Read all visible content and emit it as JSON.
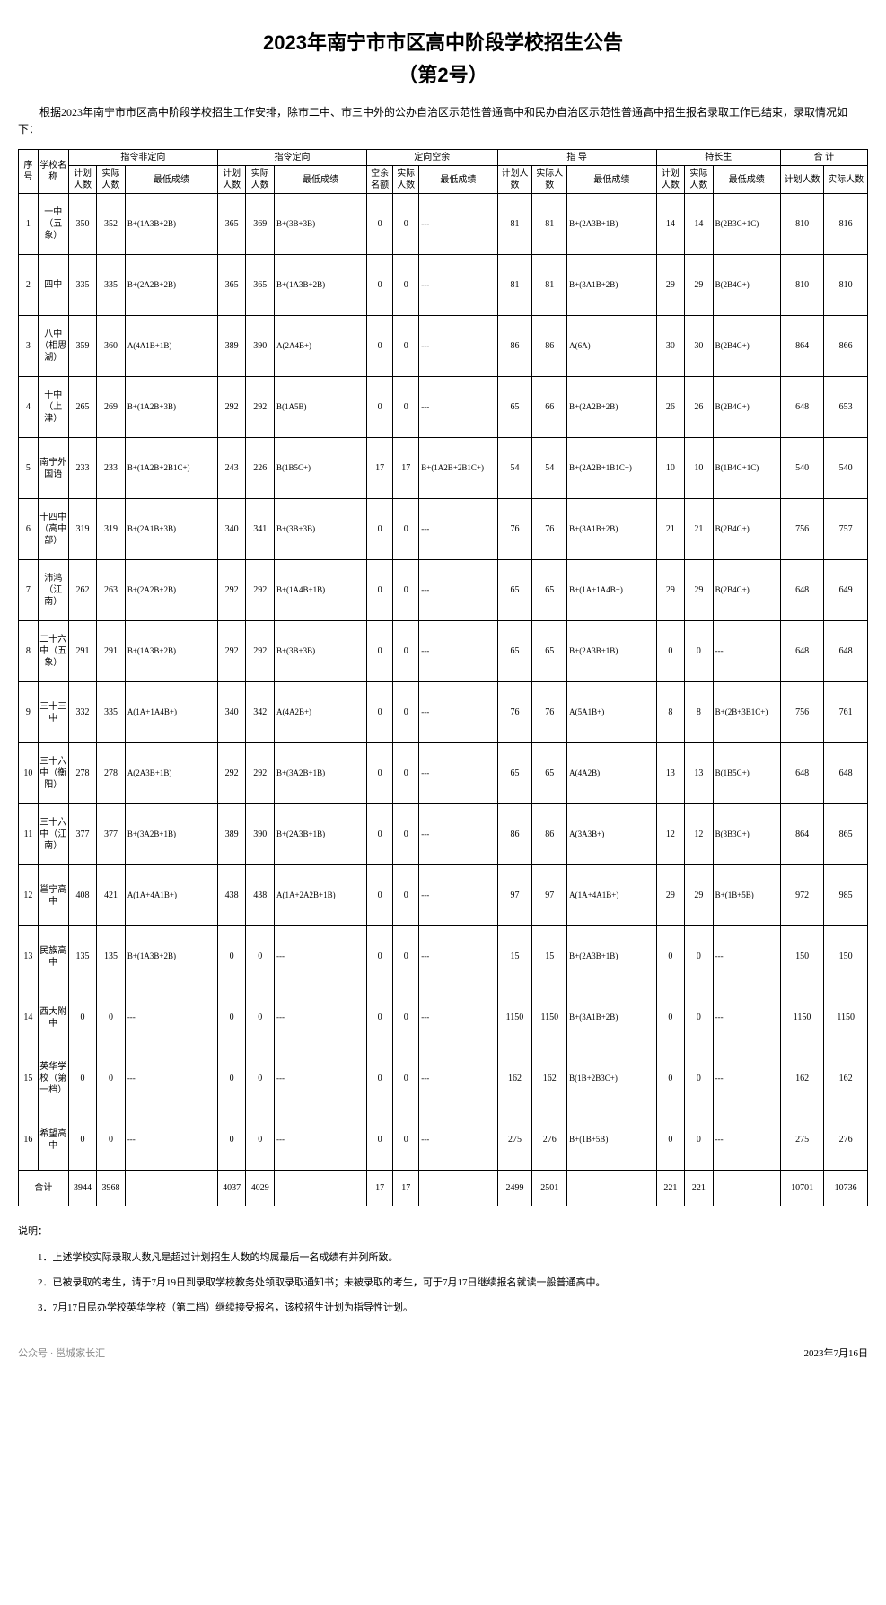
{
  "title_line1": "2023年南宁市市区高中阶段学校招生公告",
  "title_line2": "（第2号）",
  "intro": "根据2023年南宁市市区高中阶段学校招生工作安排，除市二中、市三中外的公办自治区示范性普通高中和民办自治区示范性普通高中招生报名录取工作已结束，录取情况如下：",
  "header": {
    "seq": "序号",
    "school": "学校名称",
    "group1": "指令非定向",
    "group2": "指令定向",
    "group3": "定向空余",
    "group4": "指 导",
    "group5": "特长生",
    "group6": "合 计",
    "plan": "计划人数",
    "actual": "实际人数",
    "score": "最低成绩",
    "vacant_quota": "空余名额"
  },
  "rows": [
    {
      "seq": "1",
      "school": "一中（五象）",
      "p1": "350",
      "a1": "352",
      "s1": "B+(1A3B+2B)",
      "p2": "365",
      "a2": "369",
      "s2": "B+(3B+3B)",
      "p3": "0",
      "a3": "0",
      "s3": "---",
      "p4": "81",
      "a4": "81",
      "s4": "B+(2A3B+1B)",
      "p5": "14",
      "a5": "14",
      "s5": "B(2B3C+1C)",
      "tp": "810",
      "ta": "816"
    },
    {
      "seq": "2",
      "school": "四中",
      "p1": "335",
      "a1": "335",
      "s1": "B+(2A2B+2B)",
      "p2": "365",
      "a2": "365",
      "s2": "B+(1A3B+2B)",
      "p3": "0",
      "a3": "0",
      "s3": "---",
      "p4": "81",
      "a4": "81",
      "s4": "B+(3A1B+2B)",
      "p5": "29",
      "a5": "29",
      "s5": "B(2B4C+)",
      "tp": "810",
      "ta": "810"
    },
    {
      "seq": "3",
      "school": "八中（相思湖）",
      "p1": "359",
      "a1": "360",
      "s1": "A(4A1B+1B)",
      "p2": "389",
      "a2": "390",
      "s2": "A(2A4B+)",
      "p3": "0",
      "a3": "0",
      "s3": "---",
      "p4": "86",
      "a4": "86",
      "s4": "A(6A)",
      "p5": "30",
      "a5": "30",
      "s5": "B(2B4C+)",
      "tp": "864",
      "ta": "866"
    },
    {
      "seq": "4",
      "school": "十中（上津）",
      "p1": "265",
      "a1": "269",
      "s1": "B+(1A2B+3B)",
      "p2": "292",
      "a2": "292",
      "s2": "B(1A5B)",
      "p3": "0",
      "a3": "0",
      "s3": "---",
      "p4": "65",
      "a4": "66",
      "s4": "B+(2A2B+2B)",
      "p5": "26",
      "a5": "26",
      "s5": "B(2B4C+)",
      "tp": "648",
      "ta": "653"
    },
    {
      "seq": "5",
      "school": "南宁外国语",
      "p1": "233",
      "a1": "233",
      "s1": "B+(1A2B+2B1C+)",
      "p2": "243",
      "a2": "226",
      "s2": "B(1B5C+)",
      "p3": "17",
      "a3": "17",
      "s3": "B+(1A2B+2B1C+)",
      "p4": "54",
      "a4": "54",
      "s4": "B+(2A2B+1B1C+)",
      "p5": "10",
      "a5": "10",
      "s5": "B(1B4C+1C)",
      "tp": "540",
      "ta": "540"
    },
    {
      "seq": "6",
      "school": "十四中（高中部）",
      "p1": "319",
      "a1": "319",
      "s1": "B+(2A1B+3B)",
      "p2": "340",
      "a2": "341",
      "s2": "B+(3B+3B)",
      "p3": "0",
      "a3": "0",
      "s3": "---",
      "p4": "76",
      "a4": "76",
      "s4": "B+(3A1B+2B)",
      "p5": "21",
      "a5": "21",
      "s5": "B(2B4C+)",
      "tp": "756",
      "ta": "757"
    },
    {
      "seq": "7",
      "school": "沛鸿（江南）",
      "p1": "262",
      "a1": "263",
      "s1": "B+(2A2B+2B)",
      "p2": "292",
      "a2": "292",
      "s2": "B+(1A4B+1B)",
      "p3": "0",
      "a3": "0",
      "s3": "---",
      "p4": "65",
      "a4": "65",
      "s4": "B+(1A+1A4B+)",
      "p5": "29",
      "a5": "29",
      "s5": "B(2B4C+)",
      "tp": "648",
      "ta": "649"
    },
    {
      "seq": "8",
      "school": "二十六中（五象）",
      "p1": "291",
      "a1": "291",
      "s1": "B+(1A3B+2B)",
      "p2": "292",
      "a2": "292",
      "s2": "B+(3B+3B)",
      "p3": "0",
      "a3": "0",
      "s3": "---",
      "p4": "65",
      "a4": "65",
      "s4": "B+(2A3B+1B)",
      "p5": "0",
      "a5": "0",
      "s5": "---",
      "tp": "648",
      "ta": "648"
    },
    {
      "seq": "9",
      "school": "三十三中",
      "p1": "332",
      "a1": "335",
      "s1": "A(1A+1A4B+)",
      "p2": "340",
      "a2": "342",
      "s2": "A(4A2B+)",
      "p3": "0",
      "a3": "0",
      "s3": "---",
      "p4": "76",
      "a4": "76",
      "s4": "A(5A1B+)",
      "p5": "8",
      "a5": "8",
      "s5": "B+(2B+3B1C+)",
      "tp": "756",
      "ta": "761"
    },
    {
      "seq": "10",
      "school": "三十六中（衡阳）",
      "p1": "278",
      "a1": "278",
      "s1": "A(2A3B+1B)",
      "p2": "292",
      "a2": "292",
      "s2": "B+(3A2B+1B)",
      "p3": "0",
      "a3": "0",
      "s3": "---",
      "p4": "65",
      "a4": "65",
      "s4": "A(4A2B)",
      "p5": "13",
      "a5": "13",
      "s5": "B(1B5C+)",
      "tp": "648",
      "ta": "648"
    },
    {
      "seq": "11",
      "school": "三十六中（江南）",
      "p1": "377",
      "a1": "377",
      "s1": "B+(3A2B+1B)",
      "p2": "389",
      "a2": "390",
      "s2": "B+(2A3B+1B)",
      "p3": "0",
      "a3": "0",
      "s3": "---",
      "p4": "86",
      "a4": "86",
      "s4": "A(3A3B+)",
      "p5": "12",
      "a5": "12",
      "s5": "B(3B3C+)",
      "tp": "864",
      "ta": "865"
    },
    {
      "seq": "12",
      "school": "邕宁高中",
      "p1": "408",
      "a1": "421",
      "s1": "A(1A+4A1B+)",
      "p2": "438",
      "a2": "438",
      "s2": "A(1A+2A2B+1B)",
      "p3": "0",
      "a3": "0",
      "s3": "---",
      "p4": "97",
      "a4": "97",
      "s4": "A(1A+4A1B+)",
      "p5": "29",
      "a5": "29",
      "s5": "B+(1B+5B)",
      "tp": "972",
      "ta": "985"
    },
    {
      "seq": "13",
      "school": "民族高中",
      "p1": "135",
      "a1": "135",
      "s1": "B+(1A3B+2B)",
      "p2": "0",
      "a2": "0",
      "s2": "---",
      "p3": "0",
      "a3": "0",
      "s3": "---",
      "p4": "15",
      "a4": "15",
      "s4": "B+(2A3B+1B)",
      "p5": "0",
      "a5": "0",
      "s5": "---",
      "tp": "150",
      "ta": "150"
    },
    {
      "seq": "14",
      "school": "西大附中",
      "p1": "0",
      "a1": "0",
      "s1": "---",
      "p2": "0",
      "a2": "0",
      "s2": "---",
      "p3": "0",
      "a3": "0",
      "s3": "---",
      "p4": "1150",
      "a4": "1150",
      "s4": "B+(3A1B+2B)",
      "p5": "0",
      "a5": "0",
      "s5": "---",
      "tp": "1150",
      "ta": "1150"
    },
    {
      "seq": "15",
      "school": "英华学校（第一档）",
      "p1": "0",
      "a1": "0",
      "s1": "---",
      "p2": "0",
      "a2": "0",
      "s2": "---",
      "p3": "0",
      "a3": "0",
      "s3": "---",
      "p4": "162",
      "a4": "162",
      "s4": "B(1B+2B3C+)",
      "p5": "0",
      "a5": "0",
      "s5": "---",
      "tp": "162",
      "ta": "162"
    },
    {
      "seq": "16",
      "school": "希望高中",
      "p1": "0",
      "a1": "0",
      "s1": "---",
      "p2": "0",
      "a2": "0",
      "s2": "---",
      "p3": "0",
      "a3": "0",
      "s3": "---",
      "p4": "275",
      "a4": "276",
      "s4": "B+(1B+5B)",
      "p5": "0",
      "a5": "0",
      "s5": "---",
      "tp": "275",
      "ta": "276"
    }
  ],
  "totals": {
    "label": "合计",
    "p1": "3944",
    "a1": "3968",
    "s1": "",
    "p2": "4037",
    "a2": "4029",
    "s2": "",
    "p3": "17",
    "a3": "17",
    "s3": "",
    "p4": "2499",
    "a4": "2501",
    "s4": "",
    "p5": "221",
    "a5": "221",
    "s5": "",
    "tp": "10701",
    "ta": "10736"
  },
  "notes_title": "说明：",
  "notes": [
    "1．上述学校实际录取人数凡是超过计划招生人数的均属最后一名成绩有并列所致。",
    "2．已被录取的考生，请于7月19日到录取学校教务处领取录取通知书；未被录取的考生，可于7月17日继续报名就读一般普通高中。",
    "3．7月17日民办学校英华学校（第二档）继续接受报名，该校招生计划为指导性计划。"
  ],
  "footer_source": "公众号 · 邕城家长汇",
  "footer_date": "2023年7月16日"
}
